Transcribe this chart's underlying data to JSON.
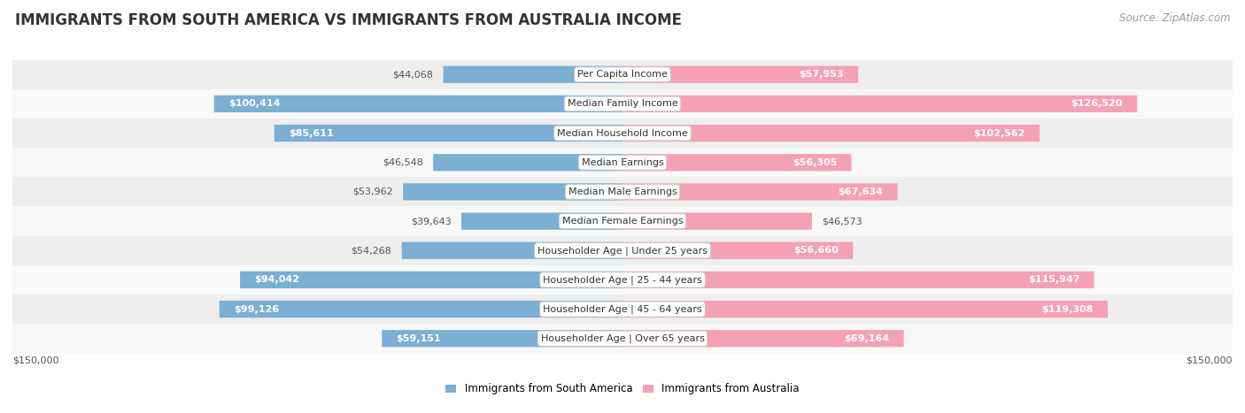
{
  "title": "IMMIGRANTS FROM SOUTH AMERICA VS IMMIGRANTS FROM AUSTRALIA INCOME",
  "source": "Source: ZipAtlas.com",
  "categories": [
    "Per Capita Income",
    "Median Family Income",
    "Median Household Income",
    "Median Earnings",
    "Median Male Earnings",
    "Median Female Earnings",
    "Householder Age | Under 25 years",
    "Householder Age | 25 - 44 years",
    "Householder Age | 45 - 64 years",
    "Householder Age | Over 65 years"
  ],
  "south_america_values": [
    44068,
    100414,
    85611,
    46548,
    53962,
    39643,
    54268,
    94042,
    99126,
    59151
  ],
  "australia_values": [
    57953,
    126520,
    102562,
    56305,
    67634,
    46573,
    56660,
    115947,
    119308,
    69164
  ],
  "south_america_labels": [
    "$44,068",
    "$100,414",
    "$85,611",
    "$46,548",
    "$53,962",
    "$39,643",
    "$54,268",
    "$94,042",
    "$99,126",
    "$59,151"
  ],
  "australia_labels": [
    "$57,953",
    "$126,520",
    "$102,562",
    "$56,305",
    "$67,634",
    "$46,573",
    "$56,660",
    "$115,947",
    "$119,308",
    "$69,164"
  ],
  "max_value": 150000,
  "color_south_america": "#7bafd4",
  "color_australia": "#f4a0b5",
  "background_row_light": "#eeeeee",
  "background_row_white": "#f8f8f8",
  "label_color_inside": "#ffffff",
  "label_color_outside": "#555555",
  "title_fontsize": 12,
  "source_fontsize": 8.5,
  "bar_label_fontsize": 8,
  "category_fontsize": 8,
  "legend_fontsize": 8.5,
  "axis_label_fontsize": 8,
  "inside_threshold": 55000
}
